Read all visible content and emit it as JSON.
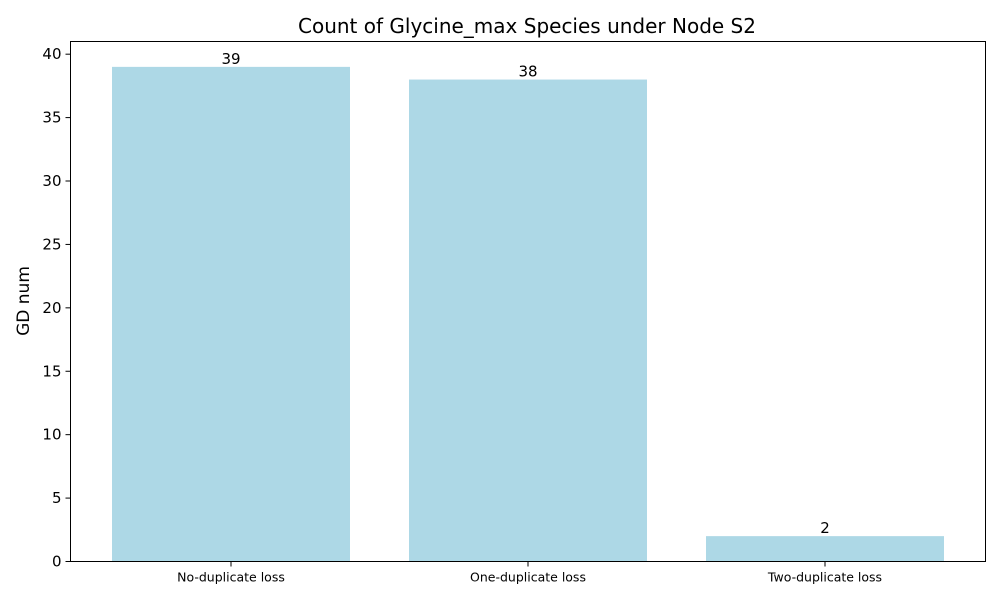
{
  "chart_data": {
    "type": "bar",
    "title": "Count of Glycine_max Species under Node S2",
    "xlabel": "",
    "ylabel": "GD num",
    "categories": [
      "No-duplicate loss",
      "One-duplicate loss",
      "Two-duplicate loss"
    ],
    "values": [
      39,
      38,
      2
    ],
    "data_labels": [
      "39",
      "38",
      "2"
    ],
    "ylim": [
      0,
      41
    ],
    "yticks": [
      0,
      5,
      10,
      15,
      20,
      25,
      30,
      35,
      40
    ],
    "grid": false,
    "legend": "none",
    "bar_color": "#add8e6"
  }
}
